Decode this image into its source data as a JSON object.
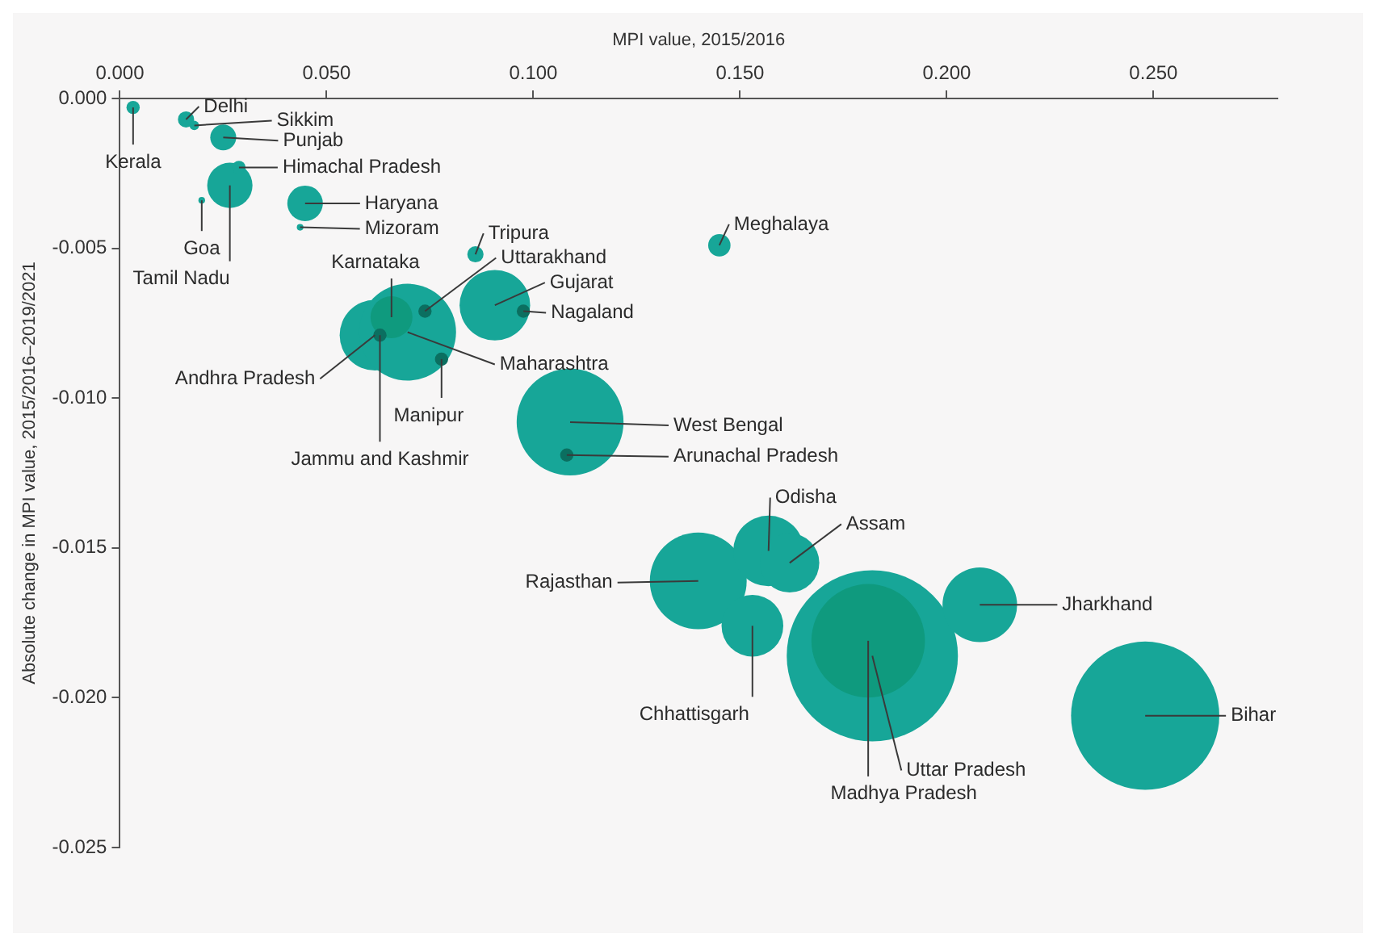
{
  "chart_data": {
    "type": "bubble",
    "xlabel": "MPI value, 2015/2016",
    "ylabel": "Absolute change in MPI value, 2015/2016–2019/2021",
    "xlim": [
      0,
      0.28
    ],
    "xticks": [
      {
        "value": 0,
        "label": "0.000"
      },
      {
        "value": 0.05,
        "label": "0.050"
      },
      {
        "value": 0.1,
        "label": "0.100"
      },
      {
        "value": 0.15,
        "label": "0.150"
      },
      {
        "value": 0.2,
        "label": "0.200"
      },
      {
        "value": 0.25,
        "label": "0.250"
      }
    ],
    "ylim": [
      -0.025,
      0
    ],
    "yticks": [
      {
        "value": 0,
        "label": "0.000"
      },
      {
        "value": -0.005,
        "label": "-0.005"
      },
      {
        "value": -0.01,
        "label": "-0.010"
      },
      {
        "value": -0.015,
        "label": "-0.015"
      },
      {
        "value": -0.02,
        "label": "-0.020"
      },
      {
        "value": -0.025,
        "label": "-0.025"
      }
    ],
    "grid": false,
    "legend": false,
    "x": [
      0.0032,
      0.016,
      0.018,
      0.025,
      0.0266,
      0.0288,
      0.0198,
      0.0448,
      0.0436,
      0.086,
      0.145,
      0.0907,
      0.0976,
      0.0617,
      0.0696,
      0.0657,
      0.0738,
      0.0629,
      0.0778,
      0.1089,
      0.1081,
      0.1399,
      0.1569,
      0.162,
      0.153,
      0.182,
      0.181,
      0.208,
      0.248
    ],
    "values": [
      -0.0003,
      -0.0007,
      -0.0009,
      -0.0013,
      -0.0029,
      -0.0023,
      -0.0034,
      -0.0035,
      -0.0043,
      -0.0052,
      -0.0049,
      -0.0069,
      -0.0071,
      -0.0079,
      -0.0078,
      -0.0073,
      -0.0071,
      -0.0079,
      -0.0087,
      -0.0108,
      -0.0119,
      -0.0161,
      -0.0151,
      -0.0155,
      -0.0176,
      -0.0186,
      -0.0181,
      -0.0169,
      -0.0206
    ],
    "sizes": [
      0.006,
      0.009,
      0.003,
      0.023,
      0.07,
      0.006,
      0.0015,
      0.043,
      0.0015,
      0.009,
      0.017,
      0.17,
      0.006,
      0.17,
      0.32,
      0.06,
      0.006,
      0.006,
      0.006,
      0.39,
      0.006,
      0.32,
      0.17,
      0.12,
      0.13,
      1,
      0.44,
      0.19,
      0.75
    ],
    "colors": [
      "#17a698",
      "#17a698",
      "#17a698",
      "#17a698",
      "#17a698",
      "#17a698",
      "#17a698",
      "#17a698",
      "#17a698",
      "#17a698",
      "#17a698",
      "#17a698",
      "#0b6f60",
      "#17a698",
      "#17a698",
      "#0f9a7e",
      "#0b6f60",
      "#0b6f60",
      "#0b6f60",
      "#17a698",
      "#0b6f60",
      "#17a698",
      "#17a698",
      "#17a698",
      "#17a698",
      "#17a698",
      "#0f9a7e",
      "#17a698",
      "#17a698"
    ],
    "annotations": [
      {
        "text": "Kerala",
        "x": 0.0032,
        "y": -0.0003
      },
      {
        "text": "Delhi",
        "x": 0.016,
        "y": -0.0007
      },
      {
        "text": "Sikkim",
        "x": 0.018,
        "y": -0.0009
      },
      {
        "text": "Punjab",
        "x": 0.025,
        "y": -0.0013
      },
      {
        "text": "Tamil Nadu",
        "x": 0.0266,
        "y": -0.0029
      },
      {
        "text": "Himachal Pradesh",
        "x": 0.0288,
        "y": -0.0023
      },
      {
        "text": "Goa",
        "x": 0.0198,
        "y": -0.0034
      },
      {
        "text": "Haryana",
        "x": 0.0448,
        "y": -0.0035
      },
      {
        "text": "Mizoram",
        "x": 0.0436,
        "y": -0.0043
      },
      {
        "text": "Tripura",
        "x": 0.086,
        "y": -0.0052
      },
      {
        "text": "Meghalaya",
        "x": 0.145,
        "y": -0.0049
      },
      {
        "text": "Gujarat",
        "x": 0.0907,
        "y": -0.0069
      },
      {
        "text": "Nagaland",
        "x": 0.0976,
        "y": -0.0071
      },
      {
        "text": "Andhra Pradesh",
        "x": 0.0617,
        "y": -0.0079
      },
      {
        "text": "Maharashtra",
        "x": 0.0696,
        "y": -0.0078
      },
      {
        "text": "Karnataka",
        "x": 0.0657,
        "y": -0.0073
      },
      {
        "text": "Uttarakhand",
        "x": 0.0738,
        "y": -0.0071
      },
      {
        "text": "Jammu and Kashmir",
        "x": 0.0629,
        "y": -0.0079
      },
      {
        "text": "Manipur",
        "x": 0.0778,
        "y": -0.0087
      },
      {
        "text": "West Bengal",
        "x": 0.1089,
        "y": -0.0108
      },
      {
        "text": "Arunachal Pradesh",
        "x": 0.1081,
        "y": -0.0119
      },
      {
        "text": "Rajasthan",
        "x": 0.1399,
        "y": -0.0161
      },
      {
        "text": "Odisha",
        "x": 0.1569,
        "y": -0.0151
      },
      {
        "text": "Assam",
        "x": 0.162,
        "y": -0.0155
      },
      {
        "text": "Chhattisgarh",
        "x": 0.153,
        "y": -0.0176
      },
      {
        "text": "Uttar Pradesh",
        "x": 0.182,
        "y": -0.0186
      },
      {
        "text": "Madhya Pradesh",
        "x": 0.181,
        "y": -0.0181
      },
      {
        "text": "Jharkhand",
        "x": 0.208,
        "y": -0.0169
      },
      {
        "text": "Bihar",
        "x": 0.248,
        "y": -0.0206
      }
    ]
  }
}
